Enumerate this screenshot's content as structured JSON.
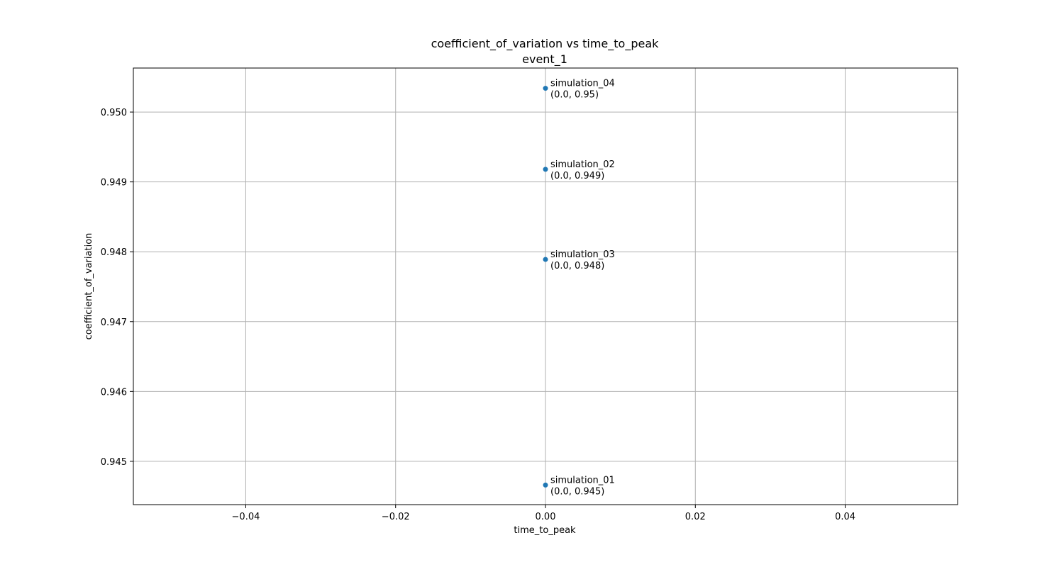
{
  "chart_data": {
    "type": "scatter",
    "title": "coefficient_of_variation vs time_to_peak",
    "subtitle": "event_1",
    "xlabel": "time_to_peak",
    "ylabel": "coefficient_of_variation",
    "xlim": [
      -0.055,
      0.055
    ],
    "ylim": [
      0.94438,
      0.95063
    ],
    "xticks": [
      -0.04,
      -0.02,
      0.0,
      0.02,
      0.04
    ],
    "xtick_labels": [
      "−0.04",
      "−0.02",
      "0.00",
      "0.02",
      "0.04"
    ],
    "yticks": [
      0.945,
      0.946,
      0.947,
      0.948,
      0.949,
      0.95
    ],
    "ytick_labels": [
      "0.945",
      "0.946",
      "0.947",
      "0.948",
      "0.949",
      "0.950"
    ],
    "grid": true,
    "legend": "none",
    "marker_color": "#1f77b4",
    "points": [
      {
        "name": "simulation_04",
        "x": 0.0,
        "y": 0.95034,
        "annotation": "(0.0, 0.95)"
      },
      {
        "name": "simulation_02",
        "x": 0.0,
        "y": 0.94918,
        "annotation": "(0.0, 0.949)"
      },
      {
        "name": "simulation_03",
        "x": 0.0,
        "y": 0.94789,
        "annotation": "(0.0, 0.948)"
      },
      {
        "name": "simulation_01",
        "x": 0.0,
        "y": 0.94466,
        "annotation": "(0.0, 0.945)"
      }
    ]
  }
}
